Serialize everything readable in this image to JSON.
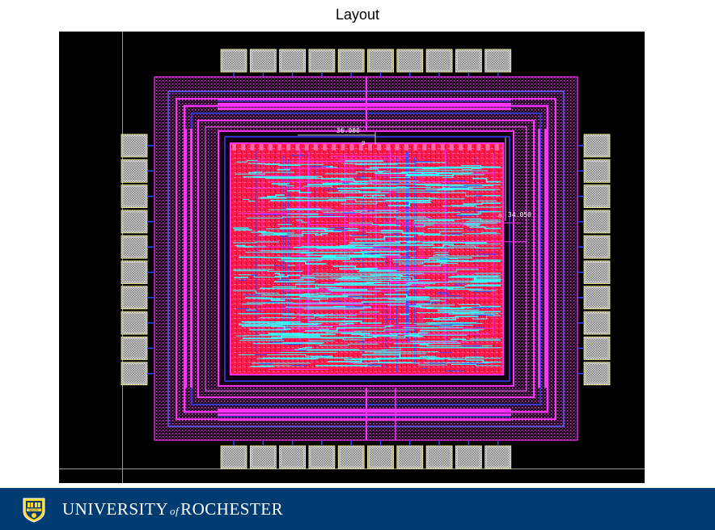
{
  "slide": {
    "title": "Layout"
  },
  "layout": {
    "dimensions": {
      "width_label": "36.000",
      "height_label": "34.050",
      "zero_label": "0"
    },
    "pads": {
      "top_count": 10,
      "bottom_count": 10,
      "left_count": 10,
      "right_count": 10
    }
  },
  "colors": {
    "canvas": "#000000",
    "pad": "#c0c0c0",
    "metal_magenta": "#ff33ff",
    "routing_cyan": "#33ffff",
    "cell_red": "#ff1a4a",
    "outline_blue": "#3344ff",
    "footer": "#003b71"
  },
  "footer": {
    "university": "UNIVERSITY",
    "of": "of",
    "city": "ROCHESTER",
    "seal_text": "MELIORA",
    "seal_icon": "university-seal-icon"
  }
}
